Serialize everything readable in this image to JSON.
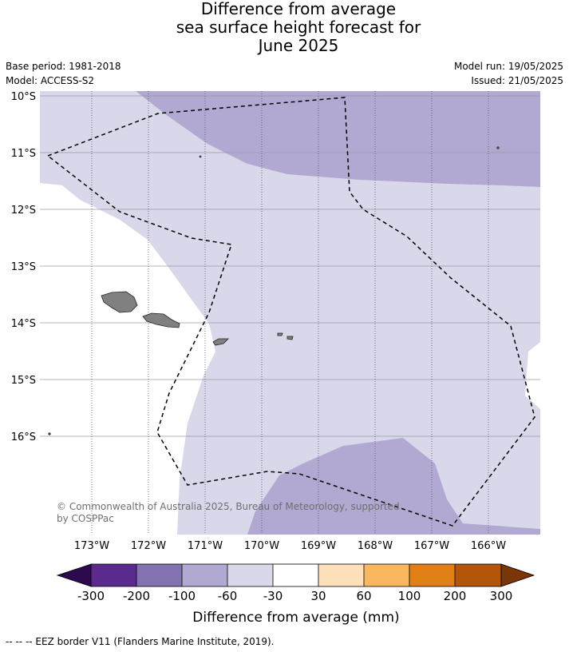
{
  "title": {
    "line1": "Difference from average",
    "line2": "sea surface height forecast for",
    "line3": "June 2025"
  },
  "meta": {
    "base_period": "Base period: 1981-2018",
    "model": "Model: ACCESS-S2",
    "model_run": "Model run: 19/05/2025",
    "issued": "Issued: 21/05/2025"
  },
  "map": {
    "lat_labels": [
      "10°S",
      "11°S",
      "12°S",
      "13°S",
      "14°S",
      "15°S",
      "16°S"
    ],
    "lon_labels": [
      "173°W",
      "172°W",
      "171°W",
      "170°W",
      "169°W",
      "168°W",
      "167°W",
      "166°W"
    ],
    "copyright": "© Commonwealth of Australia 2025, Bureau of Meteorology, supported",
    "copyright_line2": "by COSPPac"
  },
  "colorbar": {
    "ticks": [
      "-300",
      "-200",
      "-100",
      "-60",
      "-30",
      "30",
      "60",
      "100",
      "200",
      "300"
    ],
    "colors": [
      "#5b2a8f",
      "#8372b0",
      "#b1a9d1",
      "#d8d8ea",
      "#ffffff",
      "#fde0b9",
      "#f8b65e",
      "#e07f16",
      "#b4560a"
    ],
    "under_color": "#2d0a4e",
    "over_color": "#7a3607",
    "label": "Difference from average (mm)"
  },
  "legend_note": "--  --  -- EEZ border V11 (Flanders Marine Institute, 2019)."
}
